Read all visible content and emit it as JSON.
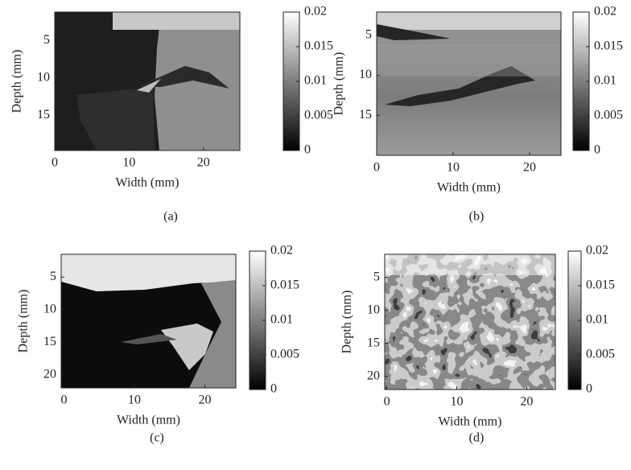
{
  "chart_data": [
    {
      "type": "image",
      "caption": "(a)",
      "xlabel": "Width (mm)",
      "ylabel": "Depth (mm)",
      "xlim": [
        0,
        24.9
      ],
      "ylim": [
        1.2,
        19.7
      ],
      "xticks": [
        0,
        10,
        20
      ],
      "yticks": [
        5,
        10,
        15
      ],
      "clim": [
        0,
        0.02
      ],
      "cticks": [
        0,
        0.005,
        0.01,
        0.015,
        0.02
      ]
    },
    {
      "type": "image",
      "caption": "(b)",
      "xlabel": "Width (mm)",
      "ylabel": "Depth (mm)",
      "xlim": [
        0,
        24.1
      ],
      "ylim": [
        2.1,
        20
      ],
      "xticks": [
        0,
        10,
        20
      ],
      "yticks": [
        5,
        10,
        15
      ],
      "clim": [
        0,
        0.02
      ],
      "cticks": [
        0,
        0.005,
        0.01,
        0.015,
        0.02
      ]
    },
    {
      "type": "image",
      "caption": "(c)",
      "xlabel": "Width (mm)",
      "ylabel": "Depth (mm)",
      "xlim": [
        -0.4,
        24.4
      ],
      "ylim": [
        1.5,
        22
      ],
      "xticks": [
        0,
        10,
        20
      ],
      "yticks": [
        5,
        10,
        15,
        20
      ],
      "clim": [
        0,
        0.02
      ],
      "cticks": [
        0,
        0.005,
        0.01,
        0.015,
        0.02
      ]
    },
    {
      "type": "image",
      "caption": "(d)",
      "xlabel": "Width (mm)",
      "ylabel": "Depth (mm)",
      "xlim": [
        -0.3,
        24.1
      ],
      "ylim": [
        1.5,
        22
      ],
      "xticks": [
        0,
        10,
        20
      ],
      "yticks": [
        5,
        10,
        15,
        20
      ],
      "clim": [
        0,
        0.02
      ],
      "cticks": [
        0,
        0.005,
        0.01,
        0.015,
        0.02
      ]
    }
  ]
}
